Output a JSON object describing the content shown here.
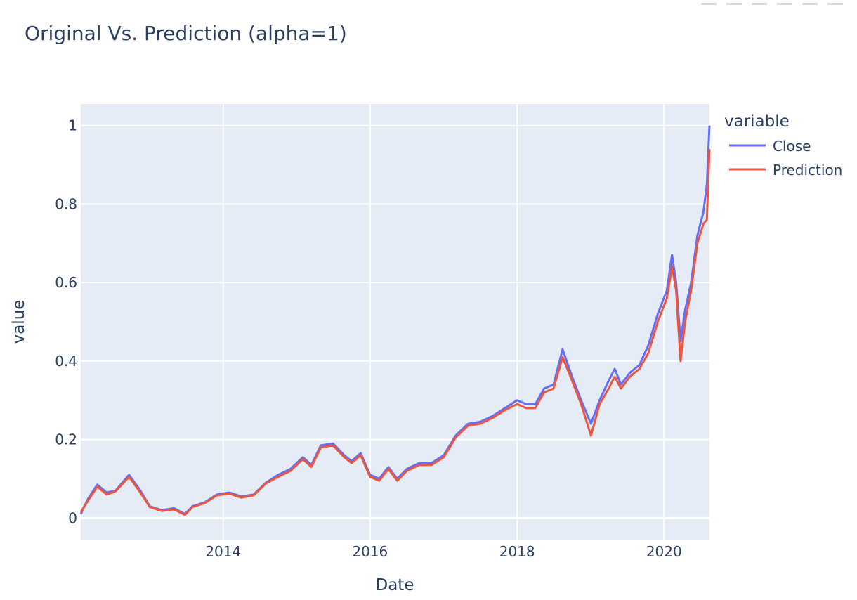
{
  "chart_data": {
    "type": "line",
    "title": "Original Vs. Prediction (alpha=1)",
    "xlabel": "Date",
    "ylabel": "value",
    "xlim": [
      "2012-01-24",
      "2020-08-14"
    ],
    "ylim": [
      -0.055,
      1.055
    ],
    "x_ticks": [
      "2014-01-01",
      "2016-01-01",
      "2018-01-01",
      "2020-01-01"
    ],
    "x_tick_labels": [
      "2014",
      "2016",
      "2018",
      "2020"
    ],
    "y_ticks": [
      0,
      0.2,
      0.4,
      0.6,
      0.8,
      1
    ],
    "y_tick_labels": [
      "0",
      "0.2",
      "0.4",
      "0.6",
      "0.8",
      "1"
    ],
    "grid": true,
    "legend": {
      "title": "variable",
      "position": "right"
    },
    "series": [
      {
        "name": "Close",
        "color": "#636efa",
        "x": [
          "2012-01-24",
          "2012-03-01",
          "2012-04-15",
          "2012-06-01",
          "2012-07-15",
          "2012-09-20",
          "2012-11-15",
          "2013-01-01",
          "2013-03-01",
          "2013-05-01",
          "2013-06-25",
          "2013-08-01",
          "2013-10-01",
          "2013-12-01",
          "2014-02-01",
          "2014-04-01",
          "2014-06-01",
          "2014-08-01",
          "2014-10-01",
          "2014-12-01",
          "2015-02-01",
          "2015-03-15",
          "2015-05-01",
          "2015-07-01",
          "2015-08-25",
          "2015-10-01",
          "2015-11-15",
          "2016-01-01",
          "2016-02-15",
          "2016-04-01",
          "2016-05-15",
          "2016-07-01",
          "2016-09-01",
          "2016-11-01",
          "2017-01-01",
          "2017-03-01",
          "2017-05-01",
          "2017-07-01",
          "2017-09-01",
          "2017-11-01",
          "2018-01-01",
          "2018-02-15",
          "2018-04-01",
          "2018-05-15",
          "2018-07-01",
          "2018-08-15",
          "2018-10-01",
          "2018-11-15",
          "2019-01-03",
          "2019-02-15",
          "2019-04-01",
          "2019-05-01",
          "2019-06-01",
          "2019-07-15",
          "2019-09-01",
          "2019-10-15",
          "2019-12-01",
          "2020-01-15",
          "2020-02-10",
          "2020-03-01",
          "2020-03-23",
          "2020-04-15",
          "2020-05-15",
          "2020-06-15",
          "2020-07-15",
          "2020-08-01",
          "2020-08-14"
        ],
        "values": [
          0.01,
          0.05,
          0.085,
          0.065,
          0.07,
          0.11,
          0.07,
          0.03,
          0.02,
          0.025,
          0.01,
          0.03,
          0.04,
          0.06,
          0.065,
          0.055,
          0.06,
          0.09,
          0.11,
          0.125,
          0.155,
          0.135,
          0.185,
          0.19,
          0.16,
          0.145,
          0.165,
          0.11,
          0.1,
          0.13,
          0.1,
          0.125,
          0.14,
          0.14,
          0.16,
          0.21,
          0.24,
          0.245,
          0.26,
          0.28,
          0.3,
          0.29,
          0.29,
          0.33,
          0.34,
          0.43,
          0.36,
          0.3,
          0.24,
          0.3,
          0.35,
          0.38,
          0.34,
          0.37,
          0.39,
          0.44,
          0.52,
          0.58,
          0.67,
          0.6,
          0.45,
          0.53,
          0.6,
          0.72,
          0.78,
          0.85,
          1.0
        ]
      },
      {
        "name": "Prediction",
        "color": "#ef553b",
        "x": [
          "2012-01-24",
          "2012-03-01",
          "2012-04-15",
          "2012-06-01",
          "2012-07-15",
          "2012-09-20",
          "2012-11-15",
          "2013-01-01",
          "2013-03-01",
          "2013-05-01",
          "2013-06-25",
          "2013-08-01",
          "2013-10-01",
          "2013-12-01",
          "2014-02-01",
          "2014-04-01",
          "2014-06-01",
          "2014-08-01",
          "2014-10-01",
          "2014-12-01",
          "2015-02-01",
          "2015-03-15",
          "2015-05-01",
          "2015-07-01",
          "2015-08-25",
          "2015-10-01",
          "2015-11-15",
          "2016-01-01",
          "2016-02-15",
          "2016-04-01",
          "2016-05-15",
          "2016-07-01",
          "2016-09-01",
          "2016-11-01",
          "2017-01-01",
          "2017-03-01",
          "2017-05-01",
          "2017-07-01",
          "2017-09-01",
          "2017-11-01",
          "2018-01-01",
          "2018-02-15",
          "2018-04-01",
          "2018-05-15",
          "2018-07-01",
          "2018-08-15",
          "2018-10-01",
          "2018-11-15",
          "2019-01-03",
          "2019-02-15",
          "2019-04-01",
          "2019-05-01",
          "2019-06-01",
          "2019-07-15",
          "2019-09-01",
          "2019-10-15",
          "2019-12-01",
          "2020-01-15",
          "2020-02-10",
          "2020-03-01",
          "2020-03-23",
          "2020-04-15",
          "2020-05-15",
          "2020-06-15",
          "2020-07-15",
          "2020-08-01",
          "2020-08-14"
        ],
        "values": [
          0.015,
          0.045,
          0.08,
          0.06,
          0.068,
          0.105,
          0.065,
          0.028,
          0.018,
          0.022,
          0.008,
          0.028,
          0.038,
          0.058,
          0.062,
          0.052,
          0.058,
          0.088,
          0.105,
          0.12,
          0.15,
          0.13,
          0.18,
          0.185,
          0.155,
          0.14,
          0.16,
          0.105,
          0.095,
          0.125,
          0.095,
          0.12,
          0.135,
          0.135,
          0.155,
          0.205,
          0.235,
          0.24,
          0.255,
          0.275,
          0.29,
          0.28,
          0.28,
          0.32,
          0.33,
          0.41,
          0.35,
          0.29,
          0.21,
          0.29,
          0.33,
          0.36,
          0.33,
          0.36,
          0.38,
          0.42,
          0.5,
          0.56,
          0.64,
          0.58,
          0.4,
          0.5,
          0.58,
          0.7,
          0.75,
          0.76,
          0.94
        ]
      }
    ]
  }
}
